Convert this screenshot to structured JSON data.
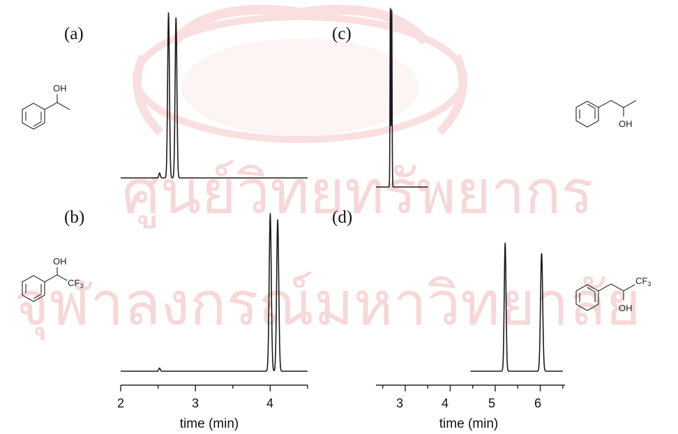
{
  "panels": [
    {
      "id": "a",
      "label": "(a)",
      "molecule_labels": [
        "OH"
      ]
    },
    {
      "id": "b",
      "label": "(b)",
      "molecule_labels": [
        "OH",
        "CF",
        "3"
      ]
    },
    {
      "id": "c",
      "label": "(c)",
      "molecule_labels": [
        "OH"
      ]
    },
    {
      "id": "d",
      "label": "(d)",
      "molecule_labels": [
        "OH",
        "CF",
        "3"
      ]
    }
  ],
  "axes": {
    "left": {
      "title": "time (min)",
      "ticks": [
        "2",
        "3",
        "4"
      ]
    },
    "right": {
      "title": "time (min)",
      "ticks": [
        "3",
        "4",
        "5",
        "6"
      ]
    }
  },
  "watermark": {
    "line1": "ศูนย์วิทยทรัพยากร",
    "line2": "จุฬาลงกรณ์มหาวิทยาลัย",
    "color": "#f2b8b8"
  },
  "chart_data": [
    {
      "type": "line",
      "panel": "a",
      "xlabel": "time (min)",
      "xlim": [
        2.0,
        4.5
      ],
      "x_range": [
        2.0,
        4.5
      ],
      "peaks": [
        {
          "x": 2.64,
          "height": 1.0,
          "width": 0.012
        },
        {
          "x": 2.74,
          "height": 0.97,
          "width": 0.012
        },
        {
          "x": 2.52,
          "height": 0.03,
          "width": 0.01
        }
      ]
    },
    {
      "type": "line",
      "panel": "b",
      "xlabel": "time (min)",
      "xlim": [
        2.0,
        4.5
      ],
      "x_range": [
        2.0,
        4.5
      ],
      "peaks": [
        {
          "x": 4.0,
          "height": 1.0,
          "width": 0.014
        },
        {
          "x": 4.1,
          "height": 0.96,
          "width": 0.014
        },
        {
          "x": 2.52,
          "height": 0.02,
          "width": 0.01
        }
      ]
    },
    {
      "type": "line",
      "panel": "c",
      "xlabel": "time (min)",
      "xlim": [
        2.35,
        6.55
      ],
      "x_range": [
        2.35,
        3.5
      ],
      "peaks": [
        {
          "x": 2.67,
          "height": 1.0,
          "width": 0.008
        },
        {
          "x": 2.7,
          "height": 0.99,
          "width": 0.008
        }
      ]
    },
    {
      "type": "line",
      "panel": "d",
      "xlabel": "time (min)",
      "xlim": [
        2.35,
        6.55
      ],
      "x_range": [
        4.45,
        6.5
      ],
      "peaks": [
        {
          "x": 5.22,
          "height": 0.87,
          "width": 0.02
        },
        {
          "x": 6.03,
          "height": 0.8,
          "width": 0.024
        }
      ]
    }
  ]
}
